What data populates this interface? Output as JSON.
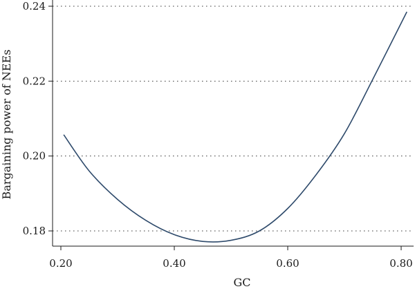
{
  "chart_data": {
    "type": "line",
    "title": "",
    "xlabel": "GC",
    "ylabel": "Bargaining power of NEEs",
    "xlim": [
      0.2,
      0.8
    ],
    "ylim": [
      0.18,
      0.24
    ],
    "x_ticks": [
      "0.20",
      "0.40",
      "0.60",
      "0.80"
    ],
    "y_ticks": [
      "0.18",
      "0.20",
      "0.22",
      "0.24"
    ],
    "grid": "horizontal dotted",
    "series": [
      {
        "color": "#2e4a6b",
        "points": [
          [
            0.205,
            0.2057
          ],
          [
            0.25,
            0.196
          ],
          [
            0.3,
            0.1884
          ],
          [
            0.35,
            0.1828
          ],
          [
            0.4,
            0.179
          ],
          [
            0.45,
            0.1772
          ],
          [
            0.5,
            0.1775
          ],
          [
            0.55,
            0.18
          ],
          [
            0.6,
            0.186
          ],
          [
            0.65,
            0.195
          ],
          [
            0.7,
            0.206
          ],
          [
            0.75,
            0.2205
          ],
          [
            0.81,
            0.2385
          ]
        ]
      }
    ]
  }
}
